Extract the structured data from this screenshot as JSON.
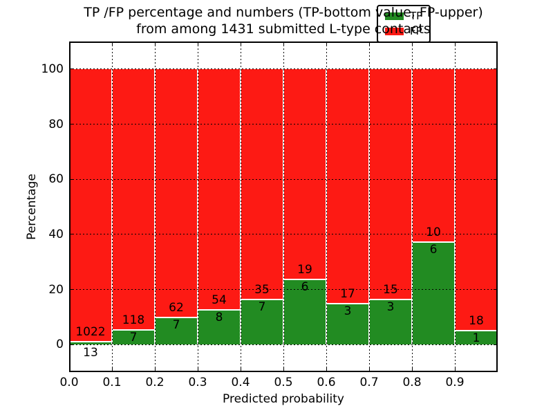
{
  "figure": {
    "title_line1": "TP /FP percentage and numbers (TP-bottom value, FP-upper)",
    "title_line2": "from among 1431 submitted L-type contacts"
  },
  "chart_data": {
    "type": "bar",
    "stacked": true,
    "orientation": "vertical",
    "title": "TP /FP percentage and numbers (TP-bottom value, FP-upper)\nfrom among 1431 submitted L-type contacts",
    "xlabel": "Predicted probability",
    "ylabel": "Percentage",
    "xlim": [
      0,
      1
    ],
    "ylim": [
      -10,
      110
    ],
    "grid": true,
    "grid_style": "dotted",
    "background": "#ffffff",
    "total_contacts": 1431,
    "bins": [
      {
        "range": [
          0.0,
          0.1
        ],
        "tp": 13,
        "fp": 1022,
        "tp_percent": 1.26
      },
      {
        "range": [
          0.1,
          0.2
        ],
        "tp": 7,
        "fp": 118,
        "tp_percent": 5.6
      },
      {
        "range": [
          0.2,
          0.3
        ],
        "tp": 7,
        "fp": 62,
        "tp_percent": 10.14
      },
      {
        "range": [
          0.3,
          0.4
        ],
        "tp": 8,
        "fp": 54,
        "tp_percent": 12.9
      },
      {
        "range": [
          0.4,
          0.5
        ],
        "tp": 7,
        "fp": 35,
        "tp_percent": 16.67
      },
      {
        "range": [
          0.5,
          0.6
        ],
        "tp": 6,
        "fp": 19,
        "tp_percent": 24.0
      },
      {
        "range": [
          0.6,
          0.7
        ],
        "tp": 3,
        "fp": 17,
        "tp_percent": 15.0
      },
      {
        "range": [
          0.7,
          0.8
        ],
        "tp": 3,
        "fp": 15,
        "tp_percent": 16.67
      },
      {
        "range": [
          0.8,
          0.9
        ],
        "tp": 6,
        "fp": 10,
        "tp_percent": 37.5
      },
      {
        "range": [
          0.9,
          1.0
        ],
        "tp": 1,
        "fp": 18,
        "tp_percent": 5.26
      }
    ],
    "series": [
      {
        "name": "TP",
        "color": "#228b22"
      },
      {
        "name": "FP",
        "color": "#fd1a14"
      }
    ],
    "legend": {
      "position": "upper right",
      "entries": [
        {
          "label": "TP",
          "color": "#228b22"
        },
        {
          "label": "FP",
          "color": "#fd1a14"
        }
      ]
    },
    "xticks": [
      "0.0",
      "0.1",
      "0.2",
      "0.3",
      "0.4",
      "0.5",
      "0.6",
      "0.7",
      "0.8",
      "0.9"
    ],
    "yticks": [
      "0",
      "20",
      "40",
      "60",
      "80",
      "100"
    ]
  }
}
